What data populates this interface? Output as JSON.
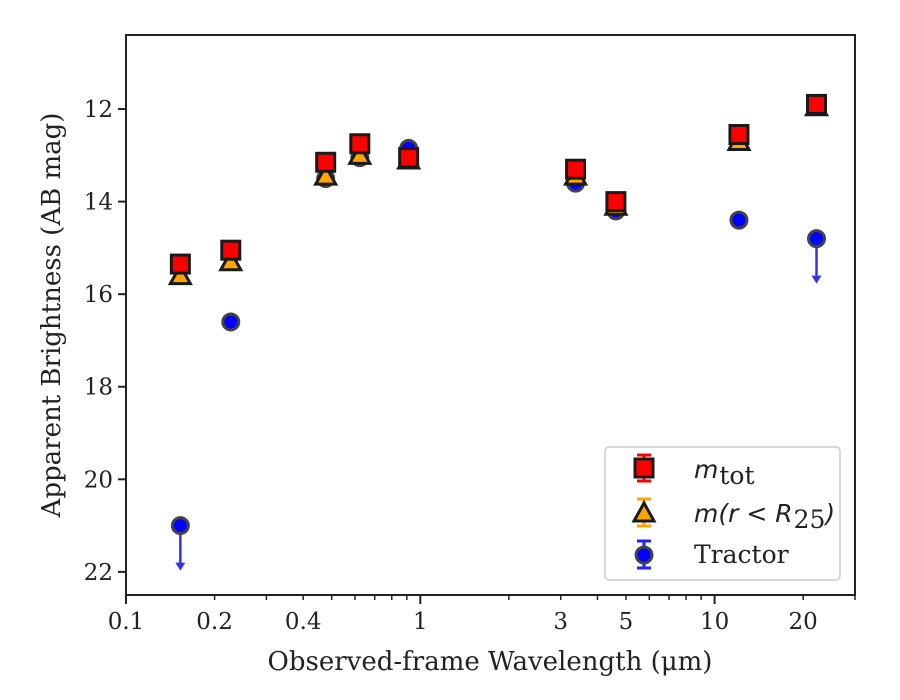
{
  "chart_data": {
    "type": "scatter",
    "title": "",
    "xlabel": "Observed-frame Wavelength (μm)",
    "ylabel": "Apparent Brightness (AB mag)",
    "xscale": "log",
    "xlim": [
      0.1,
      30
    ],
    "ylim": [
      22.5,
      10.4
    ],
    "y_inverted": true,
    "x_ticks": [
      {
        "value": 0.1,
        "label": "0.1"
      },
      {
        "value": 0.2,
        "label": "0.2"
      },
      {
        "value": 0.4,
        "label": "0.4"
      },
      {
        "value": 1,
        "label": "1"
      },
      {
        "value": 3,
        "label": "3"
      },
      {
        "value": 5,
        "label": "5"
      },
      {
        "value": 10,
        "label": "10"
      },
      {
        "value": 20,
        "label": "20"
      }
    ],
    "y_ticks": [
      {
        "value": 12,
        "label": "12"
      },
      {
        "value": 14,
        "label": "14"
      },
      {
        "value": 16,
        "label": "16"
      },
      {
        "value": 18,
        "label": "18"
      },
      {
        "value": 20,
        "label": "20"
      },
      {
        "value": 22,
        "label": "22"
      }
    ],
    "grid": false,
    "legend_position": "bottom-right",
    "series": [
      {
        "name": "m_tot",
        "marker": "square",
        "color": "#ff0000",
        "edge_color": "#1a1a1a",
        "points": [
          {
            "x": 0.153,
            "y": 15.35
          },
          {
            "x": 0.227,
            "y": 15.05
          },
          {
            "x": 0.477,
            "y": 13.15
          },
          {
            "x": 0.623,
            "y": 12.75
          },
          {
            "x": 0.913,
            "y": 13.05
          },
          {
            "x": 3.37,
            "y": 13.3
          },
          {
            "x": 4.62,
            "y": 14.0
          },
          {
            "x": 12.1,
            "y": 12.55
          },
          {
            "x": 22.2,
            "y": 11.9
          }
        ]
      },
      {
        "name": "m(r < R25)",
        "marker": "triangle",
        "color": "#ffa500",
        "edge_color": "#1a1a1a",
        "points": [
          {
            "x": 0.153,
            "y": 15.6
          },
          {
            "x": 0.227,
            "y": 15.3
          },
          {
            "x": 0.477,
            "y": 13.45
          },
          {
            "x": 0.623,
            "y": 13.0
          },
          {
            "x": 0.913,
            "y": 13.1
          },
          {
            "x": 3.37,
            "y": 13.45
          },
          {
            "x": 4.62,
            "y": 14.1
          },
          {
            "x": 12.1,
            "y": 12.7
          },
          {
            "x": 22.2,
            "y": 11.95
          }
        ]
      },
      {
        "name": "Tractor",
        "marker": "circle",
        "color": "#0000ff",
        "edge_color": "#444444",
        "points": [
          {
            "x": 0.153,
            "y": 21.0,
            "upper_limit": true
          },
          {
            "x": 0.227,
            "y": 16.6
          },
          {
            "x": 0.477,
            "y": 13.5
          },
          {
            "x": 0.623,
            "y": 13.05
          },
          {
            "x": 0.913,
            "y": 12.85
          },
          {
            "x": 3.37,
            "y": 13.6
          },
          {
            "x": 4.62,
            "y": 14.2
          },
          {
            "x": 12.1,
            "y": 14.4
          },
          {
            "x": 22.2,
            "y": 14.8,
            "upper_limit": true
          }
        ]
      }
    ],
    "legend": [
      {
        "symbol": "m",
        "subscript": "tot",
        "plain": ""
      },
      {
        "symbol": "m(r < R",
        "subscript": "25",
        "plain": ")"
      },
      {
        "symbol": "",
        "subscript": "",
        "plain": "Tractor"
      }
    ]
  }
}
